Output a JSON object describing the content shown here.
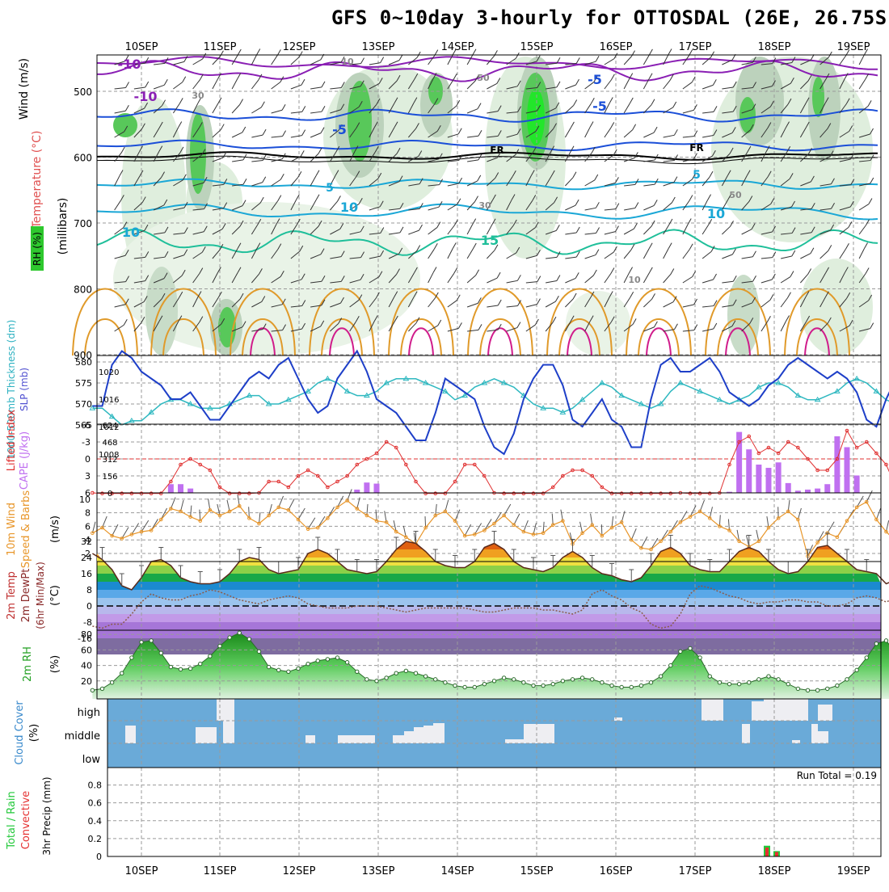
{
  "title": "GFS 0~10day 3-hourly for OTTOSDAL (26E, 26.75S)",
  "dates": [
    "10SEP",
    "11SEP",
    "12SEP",
    "13SEP",
    "14SEP",
    "15SEP",
    "16SEP",
    "17SEP",
    "18SEP",
    "19SEP"
  ],
  "colors": {
    "rh_green": "#2ec82e",
    "temp_purple": "#8a1fb4",
    "temp_blue": "#1b4fd8",
    "temp_cyan": "#1aa7d6",
    "temp_teal": "#1fbf9a",
    "temp_orange": "#e09a2a",
    "temp_magenta": "#d01c8b",
    "slp_blue": "#1e3fc8",
    "thickness_cyan": "#2fb8c0",
    "lifted_red": "#e03030",
    "cape_violet": "#c070f0",
    "wind_orange": "#e8962a",
    "cloud_blue": "#6aaad8",
    "precip_green": "#22c83a",
    "precip_red": "#e53030"
  },
  "chart_data": [
    {
      "type": "heatmap",
      "panel": "upper-air",
      "ylabel_parts": [
        "RH (%)",
        "Temperature (°C)",
        "Wind (m/s)"
      ],
      "ylabel_units": "(millibars)",
      "y_ticks": [
        500,
        600,
        700,
        800,
        900
      ],
      "ylim": [
        900,
        430
      ],
      "contour_labels": [
        "-10",
        "-10",
        "-5",
        "-5",
        "-5",
        "FR",
        "FR",
        "5",
        "5",
        "10",
        "10",
        "10",
        "15",
        "50",
        "50",
        "30",
        "30",
        "10",
        "10"
      ]
    },
    {
      "type": "line",
      "panel": "slp-thickness",
      "ylabel_left": "1000-500mb Thickness (dm)",
      "ylabel_right": "SLP (mb)",
      "left_ticks": [
        565,
        570,
        575,
        580
      ],
      "right_ticks": [
        1008,
        1012,
        1016,
        1020
      ],
      "series": [
        {
          "name": "SLP (mb)",
          "values": [
            1015,
            1015,
            1021,
            1023,
            1022,
            1020,
            1019,
            1018,
            1016,
            1016,
            1017,
            1015,
            1013,
            1013,
            1015,
            1017,
            1019,
            1020,
            1019,
            1021,
            1022,
            1019,
            1016,
            1014,
            1015,
            1019,
            1021,
            1023,
            1020,
            1016,
            1015,
            1014,
            1012,
            1010,
            1010,
            1014,
            1019,
            1018,
            1017,
            1016,
            1012,
            1009,
            1008,
            1011,
            1016,
            1019,
            1021,
            1021,
            1018,
            1013,
            1012,
            1014,
            1016,
            1013,
            1012,
            1009,
            1009,
            1016,
            1021,
            1022,
            1020,
            1020,
            1021,
            1022,
            1020,
            1017,
            1016,
            1015,
            1016,
            1018,
            1019,
            1021,
            1022,
            1021,
            1020,
            1019,
            1020,
            1019,
            1017,
            1013,
            1012,
            1016,
            1019,
            1021
          ]
        },
        {
          "name": "Thickness (dm)",
          "values": [
            569,
            569,
            567,
            565,
            566,
            566,
            568,
            570,
            571,
            571,
            570,
            569,
            569,
            569,
            570,
            571,
            572,
            572,
            570,
            570,
            571,
            572,
            573,
            575,
            576,
            575,
            573,
            572,
            572,
            573,
            575,
            576,
            576,
            576,
            575,
            574,
            573,
            571,
            572,
            574,
            575,
            576,
            575,
            574,
            572,
            570,
            569,
            569,
            568,
            569,
            571,
            573,
            575,
            574,
            572,
            571,
            570,
            569,
            570,
            573,
            575,
            574,
            573,
            572,
            571,
            570,
            571,
            572,
            574,
            575,
            575,
            574,
            572,
            571,
            571,
            572,
            573,
            575,
            576,
            575,
            573,
            571,
            570,
            569
          ]
        }
      ]
    },
    {
      "type": "bar",
      "panel": "lifted-cape",
      "ylabel_left": "Lifted Index",
      "ylabel_right": "CAPE (J/kg)",
      "li_ticks": [
        6,
        3,
        0,
        -3,
        -6
      ],
      "cape_ticks": [
        0,
        156,
        312,
        468,
        624
      ],
      "series": [
        {
          "name": "Lifted Index",
          "values": [
            6,
            7,
            7,
            8,
            8,
            8,
            8,
            7,
            4,
            1,
            0,
            1,
            2,
            5,
            7,
            7,
            7,
            6,
            4,
            4,
            5,
            3,
            2,
            3,
            5,
            4,
            3,
            1,
            0,
            -1,
            -3,
            -2,
            1,
            4,
            7,
            8,
            8,
            4,
            1,
            1,
            3,
            6,
            7,
            8,
            8,
            8,
            7,
            5,
            3,
            2,
            2,
            3,
            5,
            7,
            8,
            8,
            8,
            8,
            8,
            7,
            6,
            7,
            8,
            8,
            6,
            1,
            -3,
            -4,
            -1,
            -2,
            -1,
            -3,
            -2,
            0,
            2,
            2,
            0,
            -5,
            -2,
            -3,
            -1,
            1,
            5,
            8
          ]
        },
        {
          "name": "CAPE",
          "values": [
            0,
            0,
            0,
            0,
            0,
            0,
            0,
            0,
            80,
            80,
            40,
            0,
            0,
            0,
            0,
            0,
            0,
            0,
            0,
            0,
            0,
            0,
            0,
            0,
            0,
            0,
            0,
            30,
            95,
            85,
            0,
            0,
            0,
            0,
            0,
            0,
            0,
            0,
            0,
            0,
            0,
            0,
            0,
            0,
            0,
            0,
            0,
            0,
            0,
            0,
            0,
            0,
            0,
            0,
            0,
            0,
            0,
            0,
            0,
            0,
            0,
            0,
            0,
            0,
            0,
            10,
            560,
            400,
            260,
            230,
            280,
            90,
            20,
            30,
            40,
            80,
            520,
            420,
            160,
            0,
            0,
            0,
            0,
            0
          ]
        }
      ]
    },
    {
      "type": "line",
      "panel": "wind10m",
      "ylabel_parts": [
        "10m Wind",
        "Speed & Barbs"
      ],
      "ylabel_units": "(m/s)",
      "y_ticks": [
        2,
        4,
        6,
        8,
        10
      ],
      "series": [
        {
          "name": "10m Wind Speed",
          "values": [
            5.0,
            5.8,
            4.6,
            4.2,
            4.8,
            5.2,
            5.4,
            7.0,
            8.6,
            8.2,
            7.4,
            6.8,
            8.4,
            7.6,
            8.2,
            9.0,
            7.2,
            6.4,
            7.6,
            8.8,
            8.4,
            7.0,
            5.6,
            5.8,
            7.2,
            8.8,
            9.8,
            8.6,
            7.6,
            6.8,
            6.6,
            5.2,
            4.4,
            3.4,
            5.8,
            7.6,
            8.2,
            6.8,
            4.6,
            4.8,
            5.4,
            6.4,
            7.6,
            6.2,
            5.2,
            4.8,
            5.0,
            6.2,
            6.8,
            3.4,
            5.0,
            6.2,
            4.6,
            5.8,
            6.6,
            4.0,
            2.8,
            2.6,
            3.8,
            5.2,
            6.6,
            7.4,
            8.2,
            7.2,
            6.0,
            5.4,
            3.8,
            3.0,
            3.8,
            5.8,
            7.2,
            8.2,
            7.0,
            1.6,
            3.6,
            5.0,
            4.4,
            6.8,
            8.8,
            9.6,
            7.0,
            5.2,
            3.8,
            3.2
          ]
        }
      ]
    },
    {
      "type": "area",
      "panel": "temp-dewpoint",
      "ylabel_parts": [
        "2m Temp",
        "2m DewPt",
        "(6hr Min/Max)"
      ],
      "ylabel_units": "(°C)",
      "y_ticks": [
        -16,
        -8,
        0,
        8,
        16,
        24,
        32
      ],
      "series": [
        {
          "name": "2m Temp",
          "values": [
            26,
            23,
            18,
            10,
            8,
            14,
            22,
            23,
            20,
            14,
            12,
            11,
            11,
            12,
            16,
            22,
            24,
            23,
            18,
            16,
            17,
            18,
            26,
            28,
            26,
            22,
            18,
            17,
            16,
            17,
            22,
            28,
            32,
            31,
            27,
            22,
            20,
            19,
            19,
            22,
            29,
            31,
            28,
            22,
            19,
            18,
            17,
            19,
            24,
            27,
            24,
            19,
            16,
            15,
            13,
            12,
            14,
            20,
            27,
            29,
            26,
            20,
            18,
            17,
            17,
            22,
            27,
            29,
            27,
            22,
            18,
            16,
            17,
            22,
            29,
            30,
            26,
            22,
            18,
            17,
            16,
            11,
            13,
            14
          ]
        },
        {
          "name": "2m DewPt",
          "values": [
            -10,
            -11,
            -9,
            -9,
            -4,
            2,
            6,
            4,
            3,
            3,
            5,
            6,
            8,
            7,
            5,
            3,
            2,
            1,
            3,
            4,
            5,
            4,
            1,
            0,
            -1,
            -1,
            -1,
            0,
            0,
            0,
            -1,
            -2,
            -3,
            -2,
            -1,
            -1,
            -1,
            -1,
            -1,
            -2,
            -3,
            -3,
            -2,
            -1,
            -1,
            -1,
            -2,
            -2,
            -3,
            -4,
            -2,
            6,
            8,
            5,
            3,
            -1,
            -3,
            -9,
            -11,
            -10,
            -4,
            6,
            10,
            9,
            7,
            5,
            4,
            2,
            1,
            2,
            2,
            3,
            3,
            2,
            2,
            0,
            0,
            1,
            4,
            5,
            4,
            2,
            4,
            12
          ]
        }
      ]
    },
    {
      "type": "area",
      "panel": "rh2m",
      "ylabel": "2m RH",
      "ylabel_units": "(%)",
      "y_ticks": [
        20,
        40,
        60,
        80
      ],
      "series": [
        {
          "name": "2m RH",
          "values": [
            8,
            10,
            18,
            30,
            50,
            70,
            72,
            56,
            38,
            35,
            36,
            42,
            52,
            65,
            76,
            82,
            74,
            58,
            38,
            34,
            32,
            36,
            42,
            46,
            48,
            50,
            44,
            32,
            22,
            20,
            24,
            30,
            33,
            30,
            26,
            22,
            18,
            14,
            12,
            12,
            16,
            20,
            24,
            22,
            18,
            14,
            14,
            16,
            20,
            22,
            24,
            22,
            18,
            14,
            12,
            12,
            14,
            18,
            26,
            40,
            58,
            62,
            50,
            26,
            18,
            16,
            16,
            18,
            22,
            26,
            22,
            16,
            10,
            8,
            8,
            10,
            14,
            22,
            34,
            50,
            68,
            72,
            56,
            36
          ]
        }
      ]
    },
    {
      "type": "heatmap",
      "panel": "cloud-cover",
      "ylabel": "Cloud Cover",
      "ylabel_units": "(%)",
      "levels": [
        "high",
        "middle",
        "low"
      ]
    },
    {
      "type": "bar",
      "panel": "precip",
      "ylabel_parts": [
        "Total / Rain",
        "Convective"
      ],
      "ylabel_units": "3hr Precip (mm)",
      "y_ticks": [
        0,
        0.2,
        0.4,
        0.6,
        0.8
      ],
      "ylim": [
        0,
        0.95
      ],
      "run_total_label": "Run Total = 0.19",
      "series": [
        {
          "name": "Total / Rain",
          "values": [
            0.12,
            0.06
          ]
        },
        {
          "name": "Convective",
          "values": [
            0.1,
            0.05
          ]
        }
      ]
    }
  ]
}
